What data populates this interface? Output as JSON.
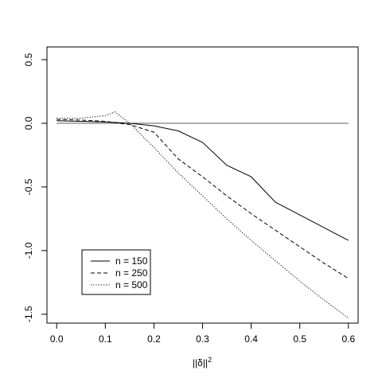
{
  "chart_data": {
    "type": "line",
    "title": "",
    "xlabel": "||δ||",
    "xlabel_superscript": "2",
    "ylabel": "",
    "xlim": [
      -0.02,
      0.62
    ],
    "ylim": [
      -1.57,
      0.6
    ],
    "x_ticks": [
      0.0,
      0.1,
      0.2,
      0.3,
      0.4,
      0.5,
      0.6
    ],
    "x_tick_labels": [
      "0.0",
      "0.1",
      "0.2",
      "0.3",
      "0.4",
      "0.5",
      "0.6"
    ],
    "y_ticks": [
      -1.5,
      -1.0,
      -0.5,
      0.0,
      0.5
    ],
    "y_tick_labels": [
      "-1.5",
      "-1.0",
      "-0.5",
      "0.0",
      "0.5"
    ],
    "grid": false,
    "legend_position": "bottom-left",
    "reference_line": {
      "y": 0
    },
    "series": [
      {
        "name": "n = 150",
        "line_style": "solid",
        "x": [
          0.0,
          0.05,
          0.1,
          0.15,
          0.2,
          0.25,
          0.3,
          0.35,
          0.4,
          0.45,
          0.5,
          0.55,
          0.6
        ],
        "y": [
          0.02,
          0.015,
          0.01,
          0.0,
          -0.02,
          -0.06,
          -0.15,
          -0.33,
          -0.42,
          -0.62,
          -0.72,
          -0.82,
          -0.92
        ]
      },
      {
        "name": "n = 250",
        "line_style": "dashed",
        "x": [
          0.0,
          0.05,
          0.1,
          0.15,
          0.2,
          0.25,
          0.3,
          0.35,
          0.4,
          0.45,
          0.5,
          0.55,
          0.6
        ],
        "y": [
          0.03,
          0.025,
          0.015,
          -0.01,
          -0.07,
          -0.28,
          -0.42,
          -0.57,
          -0.71,
          -0.84,
          -0.97,
          -1.1,
          -1.22
        ]
      },
      {
        "name": "n = 500",
        "line_style": "dotted",
        "x": [
          0.0,
          0.05,
          0.1,
          0.12,
          0.15,
          0.2,
          0.25,
          0.3,
          0.35,
          0.4,
          0.45,
          0.5,
          0.55,
          0.6
        ],
        "y": [
          0.04,
          0.04,
          0.06,
          0.09,
          0.0,
          -0.19,
          -0.39,
          -0.57,
          -0.75,
          -0.92,
          -1.08,
          -1.24,
          -1.39,
          -1.53
        ]
      }
    ]
  }
}
